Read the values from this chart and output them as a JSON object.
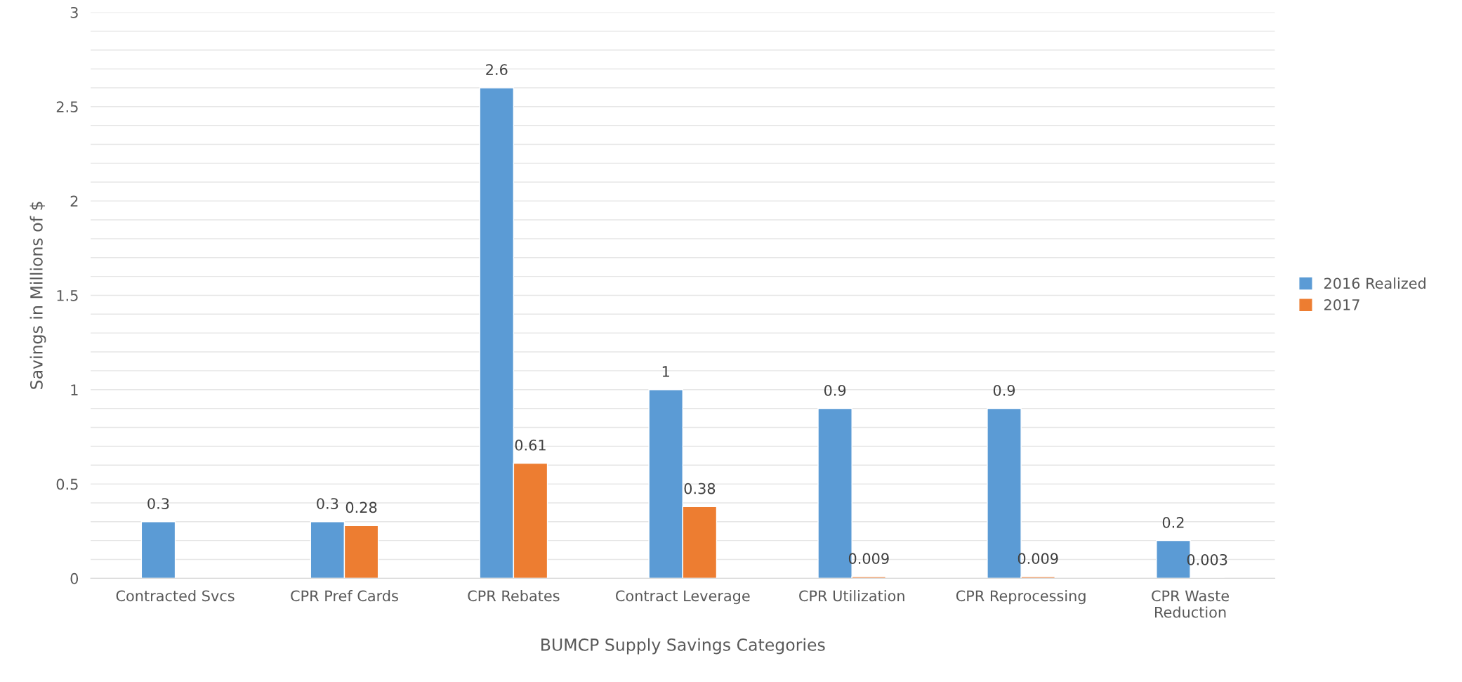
{
  "chart_data": {
    "type": "bar",
    "xlabel": "BUMCP Supply Savings Categories",
    "ylabel": "Savings in Millions of $",
    "categories": [
      "Contracted Svcs",
      "CPR Pref Cards",
      "CPR Rebates",
      "Contract Leverage",
      "CPR Utilization",
      "CPR Reprocessing",
      "CPR Waste\nReduction"
    ],
    "series": [
      {
        "name": "2016 Realized",
        "color": "#5b9bd5",
        "values": [
          0.3,
          0.3,
          2.6,
          1,
          0.9,
          0.9,
          0.2
        ]
      },
      {
        "name": "2017",
        "color": "#ed7d31",
        "values": [
          null,
          0.28,
          0.61,
          0.38,
          0.009,
          0.009,
          0.003
        ]
      }
    ],
    "ylim": [
      0,
      3
    ],
    "yticks": [
      0,
      {
        "value": 0.1,
        "label": null
      },
      {
        "value": 0.2,
        "label": null
      },
      {
        "value": 0.3,
        "label": null
      },
      {
        "value": 0.4,
        "label": null
      },
      0.5,
      {
        "value": 0.6,
        "label": null
      },
      {
        "value": 0.7,
        "label": null
      },
      {
        "value": 0.8,
        "label": null
      },
      {
        "value": 0.9,
        "label": null
      },
      1,
      {
        "value": 1.1,
        "label": null
      },
      {
        "value": 1.2,
        "label": null
      },
      {
        "value": 1.3,
        "label": null
      },
      {
        "value": 1.4,
        "label": null
      },
      1.5,
      {
        "value": 1.6,
        "label": null
      },
      {
        "value": 1.7,
        "label": null
      },
      {
        "value": 1.8,
        "label": null
      },
      {
        "value": 1.9,
        "label": null
      },
      2,
      {
        "value": 2.1,
        "label": null
      },
      {
        "value": 2.2,
        "label": null
      },
      {
        "value": 2.3,
        "label": null
      },
      {
        "value": 2.4,
        "label": null
      },
      2.5,
      {
        "value": 2.6,
        "label": null
      },
      {
        "value": 2.7,
        "label": null
      },
      {
        "value": 2.8,
        "label": null
      },
      {
        "value": 2.9,
        "label": null
      },
      3
    ],
    "grid": "y",
    "legend": "right",
    "data_labels": true
  }
}
